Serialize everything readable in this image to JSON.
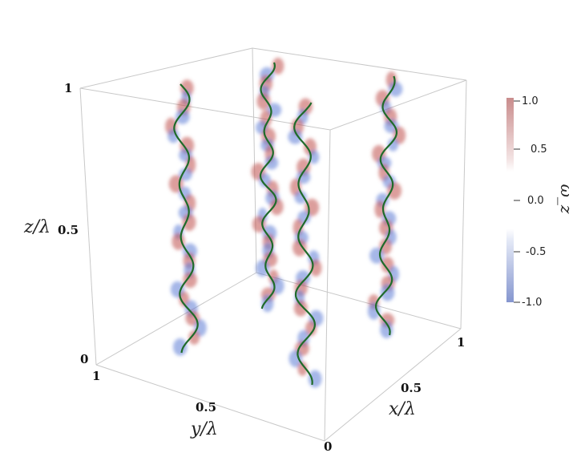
{
  "plot": {
    "z_label": "z/λ",
    "y_label": "y/λ",
    "x_label": "x/λ",
    "z_ticks": [
      "1",
      "0.5",
      "0"
    ],
    "y_ticks": [
      "1",
      "0.5",
      "0"
    ],
    "x_ticks": [
      "0.5",
      "1"
    ]
  },
  "colorbar": {
    "title": "ω_z",
    "ticks": [
      "1.0",
      "0.5",
      "0.0",
      "-0.5",
      "-1.0"
    ],
    "colors": {
      "positive": "#c0504d",
      "negative": "#5b7bd6",
      "zero": "#ffffff"
    }
  },
  "filaments": {
    "count": 4,
    "core_color": "#1f6b2a"
  }
}
